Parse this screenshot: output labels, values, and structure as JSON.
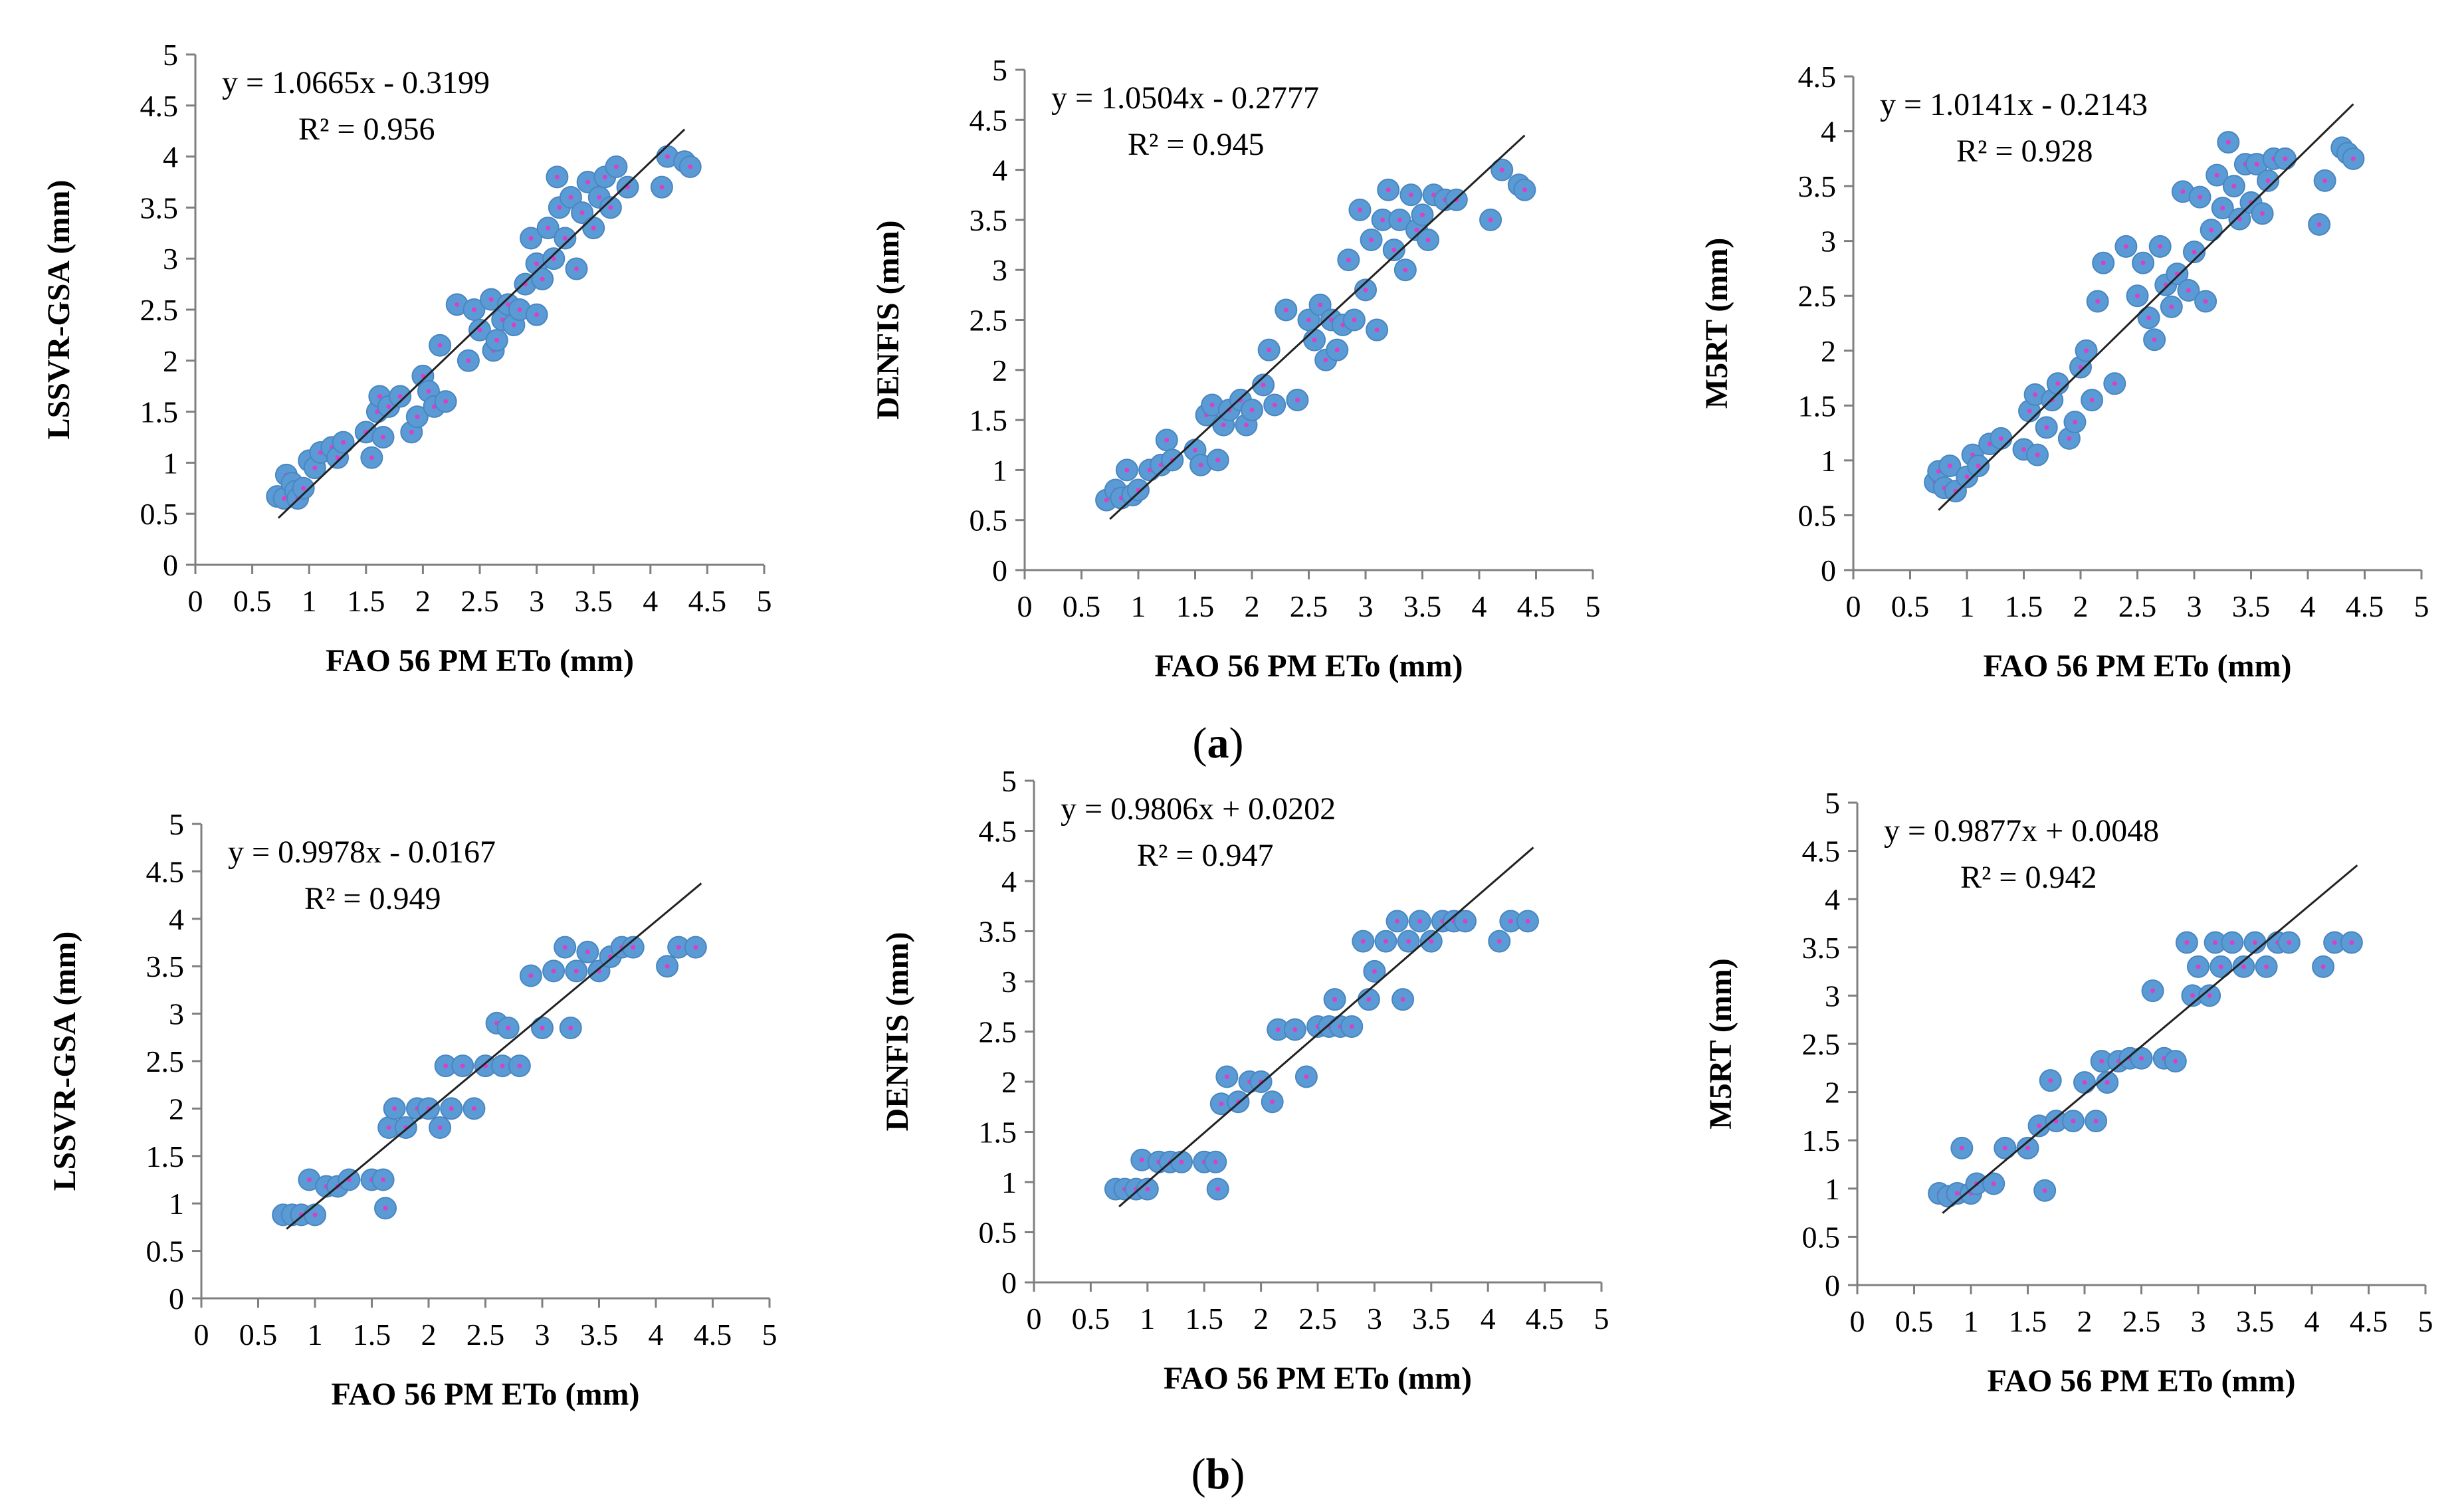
{
  "panels": [
    {
      "label": "a",
      "open": "(",
      "close": ")"
    },
    {
      "label": "b",
      "open": "(",
      "close": ")"
    }
  ],
  "chart_data": [
    {
      "type": "scatter",
      "panel": "a",
      "model": "LSSVR-GSA",
      "xlabel": "FAO 56 PM ETo (mm)",
      "ylabel": "LSSVR-GSA (mm)",
      "xlim": [
        0,
        5
      ],
      "ylim": [
        0,
        5
      ],
      "xstep": 0.5,
      "ystep": 0.5,
      "equation": "y = 1.0665x - 0.3199",
      "r2_label": "R² = 0.956",
      "fit": {
        "slope": 1.0665,
        "intercept": -0.3199,
        "x_range": [
          0.73,
          4.3
        ]
      },
      "points": [
        [
          0.72,
          0.67
        ],
        [
          0.78,
          0.65
        ],
        [
          0.8,
          0.88
        ],
        [
          0.85,
          0.8
        ],
        [
          0.88,
          0.72
        ],
        [
          0.9,
          0.65
        ],
        [
          0.95,
          0.75
        ],
        [
          1.0,
          1.02
        ],
        [
          1.05,
          0.95
        ],
        [
          1.1,
          1.1
        ],
        [
          1.2,
          1.15
        ],
        [
          1.25,
          1.05
        ],
        [
          1.3,
          1.2
        ],
        [
          1.5,
          1.3
        ],
        [
          1.55,
          1.05
        ],
        [
          1.6,
          1.5
        ],
        [
          1.62,
          1.65
        ],
        [
          1.65,
          1.25
        ],
        [
          1.7,
          1.55
        ],
        [
          1.8,
          1.65
        ],
        [
          1.9,
          1.3
        ],
        [
          1.95,
          1.45
        ],
        [
          2.0,
          1.85
        ],
        [
          2.05,
          1.7
        ],
        [
          2.1,
          1.55
        ],
        [
          2.15,
          2.15
        ],
        [
          2.2,
          1.6
        ],
        [
          2.3,
          2.55
        ],
        [
          2.4,
          2.0
        ],
        [
          2.45,
          2.5
        ],
        [
          2.5,
          2.3
        ],
        [
          2.6,
          2.6
        ],
        [
          2.62,
          2.1
        ],
        [
          2.65,
          2.2
        ],
        [
          2.7,
          2.4
        ],
        [
          2.75,
          2.55
        ],
        [
          2.8,
          2.35
        ],
        [
          2.85,
          2.5
        ],
        [
          2.9,
          2.75
        ],
        [
          2.95,
          3.2
        ],
        [
          3.0,
          2.95
        ],
        [
          3.0,
          2.45
        ],
        [
          3.05,
          2.8
        ],
        [
          3.1,
          3.3
        ],
        [
          3.15,
          3.0
        ],
        [
          3.18,
          3.8
        ],
        [
          3.2,
          3.5
        ],
        [
          3.25,
          3.2
        ],
        [
          3.3,
          3.6
        ],
        [
          3.35,
          2.9
        ],
        [
          3.4,
          3.45
        ],
        [
          3.45,
          3.75
        ],
        [
          3.5,
          3.3
        ],
        [
          3.55,
          3.6
        ],
        [
          3.6,
          3.8
        ],
        [
          3.65,
          3.5
        ],
        [
          3.7,
          3.9
        ],
        [
          3.8,
          3.7
        ],
        [
          4.1,
          3.7
        ],
        [
          4.15,
          4.0
        ],
        [
          4.3,
          3.95
        ],
        [
          4.35,
          3.9
        ]
      ]
    },
    {
      "type": "scatter",
      "panel": "a",
      "model": "DENFIS",
      "xlabel": "FAO 56 PM ETo (mm)",
      "ylabel": "DENFIS (mm)",
      "xlim": [
        0,
        5
      ],
      "ylim": [
        0,
        5
      ],
      "xstep": 0.5,
      "ystep": 0.5,
      "equation": "y = 1.0504x - 0.2777",
      "r2_label": "R² = 0.945",
      "fit": {
        "slope": 1.0504,
        "intercept": -0.2777,
        "x_range": [
          0.75,
          4.4
        ]
      },
      "points": [
        [
          0.72,
          0.7
        ],
        [
          0.8,
          0.8
        ],
        [
          0.85,
          0.72
        ],
        [
          0.9,
          1.0
        ],
        [
          0.95,
          0.75
        ],
        [
          1.0,
          0.8
        ],
        [
          1.1,
          1.0
        ],
        [
          1.2,
          1.05
        ],
        [
          1.25,
          1.3
        ],
        [
          1.3,
          1.1
        ],
        [
          1.5,
          1.2
        ],
        [
          1.55,
          1.05
        ],
        [
          1.6,
          1.55
        ],
        [
          1.65,
          1.65
        ],
        [
          1.7,
          1.1
        ],
        [
          1.75,
          1.45
        ],
        [
          1.8,
          1.6
        ],
        [
          1.9,
          1.7
        ],
        [
          1.95,
          1.45
        ],
        [
          2.0,
          1.6
        ],
        [
          2.1,
          1.85
        ],
        [
          2.15,
          2.2
        ],
        [
          2.2,
          1.65
        ],
        [
          2.3,
          2.6
        ],
        [
          2.4,
          1.7
        ],
        [
          2.5,
          2.5
        ],
        [
          2.55,
          2.3
        ],
        [
          2.6,
          2.65
        ],
        [
          2.65,
          2.1
        ],
        [
          2.7,
          2.5
        ],
        [
          2.75,
          2.2
        ],
        [
          2.8,
          2.45
        ],
        [
          2.85,
          3.1
        ],
        [
          2.9,
          2.5
        ],
        [
          2.95,
          3.6
        ],
        [
          3.0,
          2.8
        ],
        [
          3.05,
          3.3
        ],
        [
          3.1,
          2.4
        ],
        [
          3.15,
          3.5
        ],
        [
          3.2,
          3.8
        ],
        [
          3.25,
          3.2
        ],
        [
          3.3,
          3.5
        ],
        [
          3.35,
          3.0
        ],
        [
          3.4,
          3.75
        ],
        [
          3.45,
          3.4
        ],
        [
          3.5,
          3.55
        ],
        [
          3.55,
          3.3
        ],
        [
          3.6,
          3.75
        ],
        [
          3.7,
          3.7
        ],
        [
          3.8,
          3.7
        ],
        [
          4.1,
          3.5
        ],
        [
          4.2,
          4.0
        ],
        [
          4.35,
          3.85
        ],
        [
          4.4,
          3.8
        ]
      ]
    },
    {
      "type": "scatter",
      "panel": "a",
      "model": "M5RT",
      "xlabel": "FAO 56 PM ETo (mm)",
      "ylabel": "M5RT (mm)",
      "xlim": [
        0,
        5
      ],
      "ylim": [
        0,
        4.5
      ],
      "xstep": 0.5,
      "ystep": 0.5,
      "equation": "y = 1.0141x - 0.2143",
      "r2_label": "R² = 0.928",
      "fit": {
        "slope": 1.0141,
        "intercept": -0.2143,
        "x_range": [
          0.75,
          4.4
        ]
      },
      "points": [
        [
          0.72,
          0.8
        ],
        [
          0.75,
          0.9
        ],
        [
          0.8,
          0.75
        ],
        [
          0.85,
          0.95
        ],
        [
          0.9,
          0.72
        ],
        [
          1.0,
          0.85
        ],
        [
          1.05,
          1.05
        ],
        [
          1.1,
          0.95
        ],
        [
          1.2,
          1.15
        ],
        [
          1.3,
          1.2
        ],
        [
          1.5,
          1.1
        ],
        [
          1.55,
          1.45
        ],
        [
          1.6,
          1.6
        ],
        [
          1.62,
          1.05
        ],
        [
          1.7,
          1.3
        ],
        [
          1.75,
          1.55
        ],
        [
          1.8,
          1.7
        ],
        [
          1.9,
          1.2
        ],
        [
          1.95,
          1.35
        ],
        [
          2.0,
          1.85
        ],
        [
          2.05,
          2.0
        ],
        [
          2.1,
          1.55
        ],
        [
          2.15,
          2.45
        ],
        [
          2.2,
          2.8
        ],
        [
          2.3,
          1.7
        ],
        [
          2.4,
          2.95
        ],
        [
          2.5,
          2.5
        ],
        [
          2.55,
          2.8
        ],
        [
          2.6,
          2.3
        ],
        [
          2.65,
          2.1
        ],
        [
          2.7,
          2.95
        ],
        [
          2.75,
          2.6
        ],
        [
          2.8,
          2.4
        ],
        [
          2.85,
          2.7
        ],
        [
          2.9,
          3.45
        ],
        [
          2.95,
          2.55
        ],
        [
          3.0,
          2.9
        ],
        [
          3.05,
          3.4
        ],
        [
          3.1,
          2.45
        ],
        [
          3.15,
          3.1
        ],
        [
          3.2,
          3.6
        ],
        [
          3.25,
          3.3
        ],
        [
          3.3,
          3.9
        ],
        [
          3.35,
          3.5
        ],
        [
          3.4,
          3.2
        ],
        [
          3.45,
          3.7
        ],
        [
          3.5,
          3.35
        ],
        [
          3.55,
          3.7
        ],
        [
          3.6,
          3.25
        ],
        [
          3.65,
          3.55
        ],
        [
          3.7,
          3.75
        ],
        [
          3.8,
          3.75
        ],
        [
          4.1,
          3.15
        ],
        [
          4.15,
          3.55
        ],
        [
          4.3,
          3.85
        ],
        [
          4.35,
          3.8
        ],
        [
          4.4,
          3.75
        ]
      ]
    },
    {
      "type": "scatter",
      "panel": "b",
      "model": "LSSVR-GSA",
      "xlabel": "FAO 56 PM ETo (mm)",
      "ylabel": "LSSVR-GSA (mm)",
      "xlim": [
        0,
        5
      ],
      "ylim": [
        0,
        5
      ],
      "xstep": 0.5,
      "ystep": 0.5,
      "equation": "y = 0.9978x - 0.0167",
      "r2_label": "R² = 0.949",
      "fit": {
        "slope": 0.9978,
        "intercept": -0.0167,
        "x_range": [
          0.75,
          4.4
        ]
      },
      "points": [
        [
          0.72,
          0.88
        ],
        [
          0.8,
          0.88
        ],
        [
          0.88,
          0.88
        ],
        [
          0.95,
          1.25
        ],
        [
          1.0,
          0.88
        ],
        [
          1.1,
          1.18
        ],
        [
          1.2,
          1.18
        ],
        [
          1.3,
          1.25
        ],
        [
          1.5,
          1.25
        ],
        [
          1.6,
          1.25
        ],
        [
          1.62,
          0.95
        ],
        [
          1.65,
          1.8
        ],
        [
          1.7,
          2.0
        ],
        [
          1.8,
          1.8
        ],
        [
          1.9,
          2.0
        ],
        [
          2.0,
          2.0
        ],
        [
          2.1,
          1.8
        ],
        [
          2.15,
          2.45
        ],
        [
          2.2,
          2.0
        ],
        [
          2.3,
          2.45
        ],
        [
          2.4,
          2.0
        ],
        [
          2.5,
          2.45
        ],
        [
          2.6,
          2.9
        ],
        [
          2.65,
          2.45
        ],
        [
          2.7,
          2.85
        ],
        [
          2.8,
          2.45
        ],
        [
          2.9,
          3.4
        ],
        [
          3.0,
          2.85
        ],
        [
          3.1,
          3.45
        ],
        [
          3.2,
          3.7
        ],
        [
          3.25,
          2.85
        ],
        [
          3.3,
          3.45
        ],
        [
          3.4,
          3.65
        ],
        [
          3.5,
          3.45
        ],
        [
          3.6,
          3.6
        ],
        [
          3.7,
          3.7
        ],
        [
          3.8,
          3.7
        ],
        [
          4.1,
          3.5
        ],
        [
          4.2,
          3.7
        ],
        [
          4.35,
          3.7
        ]
      ]
    },
    {
      "type": "scatter",
      "panel": "b",
      "model": "DENFIS",
      "xlabel": "FAO 56 PM ETo (mm)",
      "ylabel": "DENFIS (mm)",
      "xlim": [
        0,
        5
      ],
      "ylim": [
        0,
        5
      ],
      "xstep": 0.5,
      "ystep": 0.5,
      "equation": "y = 0.9806x + 0.0202",
      "r2_label": "R² = 0.947",
      "fit": {
        "slope": 0.9806,
        "intercept": 0.0202,
        "x_range": [
          0.75,
          4.4
        ]
      },
      "points": [
        [
          0.72,
          0.93
        ],
        [
          0.8,
          0.93
        ],
        [
          0.9,
          0.93
        ],
        [
          0.95,
          1.22
        ],
        [
          1.0,
          0.93
        ],
        [
          1.1,
          1.2
        ],
        [
          1.2,
          1.2
        ],
        [
          1.3,
          1.2
        ],
        [
          1.5,
          1.2
        ],
        [
          1.6,
          1.2
        ],
        [
          1.62,
          0.93
        ],
        [
          1.65,
          1.78
        ],
        [
          1.7,
          2.05
        ],
        [
          1.8,
          1.8
        ],
        [
          1.9,
          2.0
        ],
        [
          2.0,
          2.0
        ],
        [
          2.1,
          1.8
        ],
        [
          2.15,
          2.52
        ],
        [
          2.3,
          2.52
        ],
        [
          2.4,
          2.05
        ],
        [
          2.5,
          2.55
        ],
        [
          2.6,
          2.55
        ],
        [
          2.65,
          2.82
        ],
        [
          2.7,
          2.55
        ],
        [
          2.8,
          2.55
        ],
        [
          2.9,
          3.4
        ],
        [
          2.95,
          2.82
        ],
        [
          3.0,
          3.1
        ],
        [
          3.1,
          3.4
        ],
        [
          3.2,
          3.6
        ],
        [
          3.25,
          2.82
        ],
        [
          3.3,
          3.4
        ],
        [
          3.4,
          3.6
        ],
        [
          3.5,
          3.4
        ],
        [
          3.6,
          3.6
        ],
        [
          3.7,
          3.6
        ],
        [
          3.8,
          3.6
        ],
        [
          4.1,
          3.4
        ],
        [
          4.2,
          3.6
        ],
        [
          4.35,
          3.6
        ]
      ]
    },
    {
      "type": "scatter",
      "panel": "b",
      "model": "M5RT",
      "xlabel": "FAO 56 PM ETo (mm)",
      "ylabel": "M5RT (mm)",
      "xlim": [
        0,
        5
      ],
      "ylim": [
        0,
        5
      ],
      "xstep": 0.5,
      "ystep": 0.5,
      "equation": "y = 0.9877x + 0.0048",
      "r2_label": "R² = 0.942",
      "fit": {
        "slope": 0.9877,
        "intercept": 0.0048,
        "x_range": [
          0.75,
          4.4
        ]
      },
      "points": [
        [
          0.72,
          0.95
        ],
        [
          0.8,
          0.92
        ],
        [
          0.88,
          0.95
        ],
        [
          0.92,
          1.42
        ],
        [
          1.0,
          0.95
        ],
        [
          1.05,
          1.05
        ],
        [
          1.2,
          1.05
        ],
        [
          1.3,
          1.42
        ],
        [
          1.5,
          1.42
        ],
        [
          1.6,
          1.65
        ],
        [
          1.65,
          0.98
        ],
        [
          1.7,
          2.12
        ],
        [
          1.75,
          1.7
        ],
        [
          1.9,
          1.7
        ],
        [
          2.0,
          2.1
        ],
        [
          2.1,
          1.7
        ],
        [
          2.15,
          2.32
        ],
        [
          2.2,
          2.1
        ],
        [
          2.3,
          2.32
        ],
        [
          2.4,
          2.35
        ],
        [
          2.5,
          2.35
        ],
        [
          2.6,
          3.05
        ],
        [
          2.7,
          2.35
        ],
        [
          2.8,
          2.32
        ],
        [
          2.9,
          3.55
        ],
        [
          2.95,
          3.0
        ],
        [
          3.0,
          3.3
        ],
        [
          3.1,
          3.0
        ],
        [
          3.15,
          3.55
        ],
        [
          3.2,
          3.3
        ],
        [
          3.3,
          3.55
        ],
        [
          3.4,
          3.3
        ],
        [
          3.5,
          3.55
        ],
        [
          3.6,
          3.3
        ],
        [
          3.7,
          3.55
        ],
        [
          3.8,
          3.55
        ],
        [
          4.1,
          3.3
        ],
        [
          4.2,
          3.55
        ],
        [
          4.35,
          3.55
        ]
      ]
    }
  ]
}
